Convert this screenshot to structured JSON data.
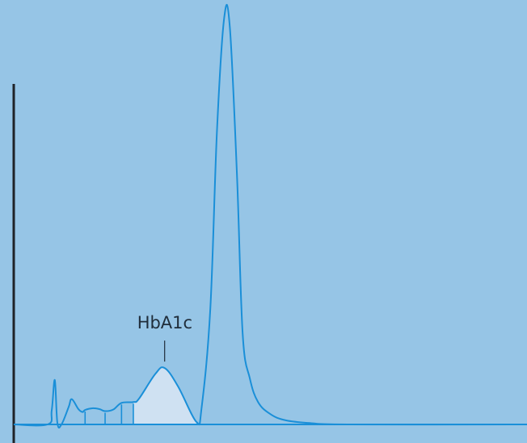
{
  "colors": {
    "background": "#96c5e6",
    "trace": "#1a8fd8",
    "axis": "#1f2328",
    "highlight_fill": "#cfe1f2",
    "label_text": "#1f2d3a"
  },
  "chart_data": {
    "type": "line",
    "title": "",
    "xlabel": "",
    "ylabel": "",
    "xlim": [
      0,
      100
    ],
    "ylim": [
      0,
      100
    ],
    "grid": false,
    "legend": "none",
    "highlighted_peak": {
      "label": "HbA1c",
      "x_start": 23.3,
      "x_end": 35.6,
      "apex_x": 29.4,
      "apex_y": 13.6
    },
    "integration_dividers_x": [
      13.9,
      17.8,
      21.0,
      23.3,
      35.6
    ],
    "series": [
      {
        "values": [
          {
            "x": 0.0,
            "y": 0.0
          },
          {
            "x": 6.6,
            "y": 0.0
          },
          {
            "x": 7.4,
            "y": 3.4
          },
          {
            "x": 8.0,
            "y": 10.7
          },
          {
            "x": 8.5,
            "y": 0.4
          },
          {
            "x": 9.3,
            "y": 0.0
          },
          {
            "x": 10.7,
            "y": 4.2
          },
          {
            "x": 11.3,
            "y": 6.1
          },
          {
            "x": 12.6,
            "y": 3.7
          },
          {
            "x": 13.4,
            "y": 3.0
          },
          {
            "x": 13.9,
            "y": 3.5
          },
          {
            "x": 15.3,
            "y": 3.9
          },
          {
            "x": 16.7,
            "y": 3.7
          },
          {
            "x": 17.8,
            "y": 3.2
          },
          {
            "x": 19.4,
            "y": 3.6
          },
          {
            "x": 21.0,
            "y": 5.2
          },
          {
            "x": 23.3,
            "y": 5.4
          },
          {
            "x": 24.4,
            "y": 6.2
          },
          {
            "x": 27.6,
            "y": 12.2
          },
          {
            "x": 29.4,
            "y": 13.6
          },
          {
            "x": 32.0,
            "y": 9.2
          },
          {
            "x": 35.6,
            "y": 0.6
          },
          {
            "x": 36.6,
            "y": 4.0
          },
          {
            "x": 38.3,
            "y": 27.9
          },
          {
            "x": 39.6,
            "y": 70.9
          },
          {
            "x": 41.0,
            "y": 98.0
          },
          {
            "x": 42.1,
            "y": 95.8
          },
          {
            "x": 43.5,
            "y": 59.9
          },
          {
            "x": 44.6,
            "y": 21.9
          },
          {
            "x": 46.0,
            "y": 11.1
          },
          {
            "x": 47.6,
            "y": 5.4
          },
          {
            "x": 50.0,
            "y": 2.5
          },
          {
            "x": 53.0,
            "y": 1.0
          },
          {
            "x": 58.0,
            "y": 0.3
          },
          {
            "x": 65.0,
            "y": 0.0
          },
          {
            "x": 100.0,
            "y": 0.0
          }
        ]
      }
    ]
  }
}
